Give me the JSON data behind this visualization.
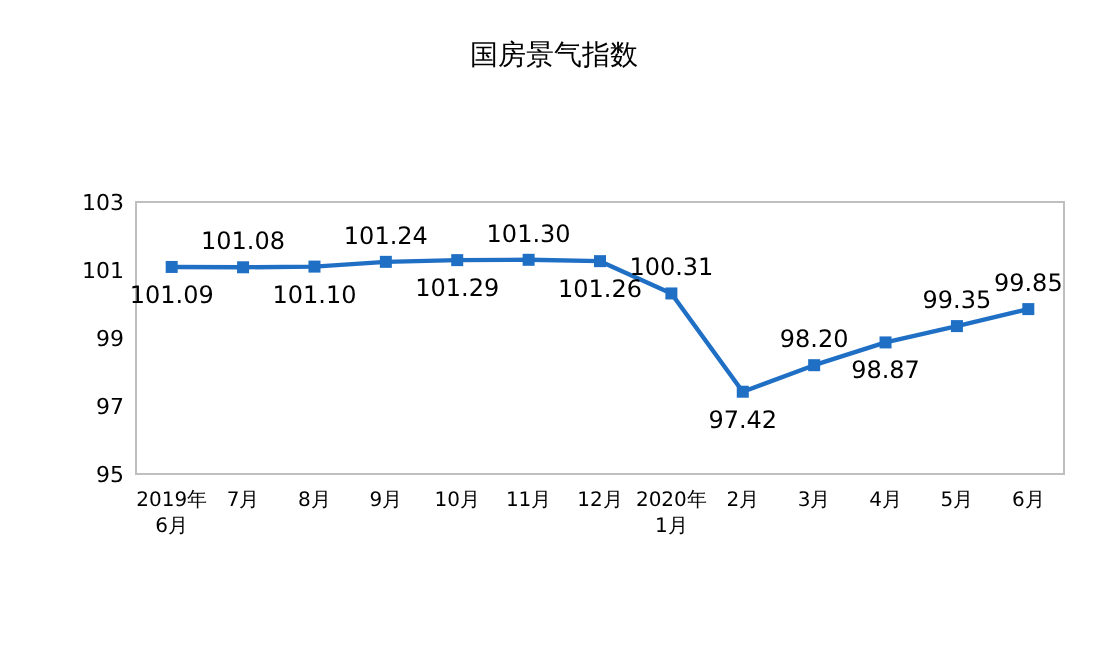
{
  "chart_data": {
    "type": "line",
    "title": "国房景气指数",
    "categories": [
      "2019年\n6月",
      "7月",
      "8月",
      "9月",
      "10月",
      "11月",
      "12月",
      "2020年\n1月",
      "2月",
      "3月",
      "4月",
      "5月",
      "6月"
    ],
    "series": [
      {
        "color": "#1f6fc5",
        "values": [
          101.09,
          101.08,
          101.1,
          101.24,
          101.29,
          101.3,
          101.26,
          100.31,
          97.42,
          98.2,
          98.87,
          99.35,
          99.85
        ],
        "value_labels": [
          "101.09",
          "101.08",
          "101.10",
          "101.24",
          "101.29",
          "101.30",
          "101.26",
          "100.31",
          "97.42",
          "98.20",
          "98.87",
          "99.35",
          "99.85"
        ]
      }
    ],
    "ylim": [
      95,
      103
    ],
    "yticks": [
      95,
      97,
      99,
      101,
      103
    ],
    "marker": "square",
    "line_style": "solid",
    "grid": false
  }
}
